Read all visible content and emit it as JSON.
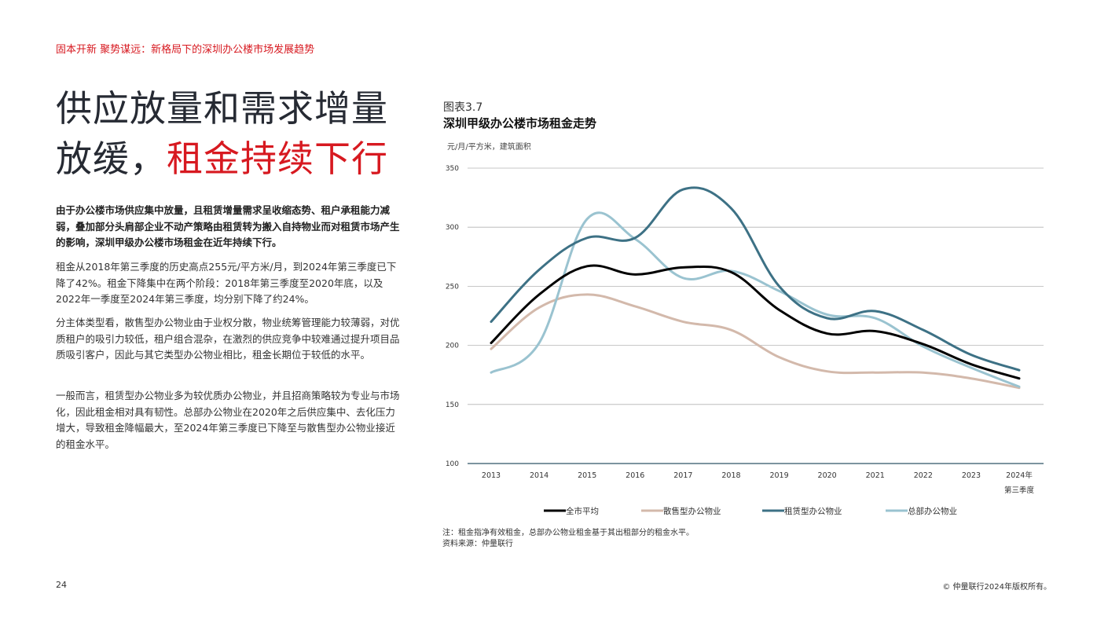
{
  "header": {
    "breadcrumb": "固本开新 聚势谋远：新格局下的深圳办公楼市场发展趋势"
  },
  "title": {
    "line1": "供应放量和需求增量",
    "line2_plain": "放缓，",
    "line2_accent": "租金持续下行"
  },
  "lead": "由于办公楼市场供应集中放量，且租赁增量需求呈收缩态势、租户承租能力减弱，叠加部分头肩部企业不动产策略由租赁转为搬入自持物业而对租赁市场产生的影响，深圳甲级办公楼市场租金在近年持续下行。",
  "paragraphs": [
    "租金从2018年第三季度的历史高点255元/平方米/月，到2024年第三季度已下降了42%。租金下降集中在两个阶段：2018年第三季度至2020年底，以及2022年一季度至2024年第三季度，均分别下降了约24%。",
    "分主体类型看，散售型办公物业由于业权分散，物业统筹管理能力较薄弱，对优质租户的吸引力较低，租户组合混杂，在激烈的供应竞争中较难通过提升项目品质吸引客户，因此与其它类型办公物业相比，租金长期位于较低的水平。",
    "一般而言，租赁型办公物业多为较优质办公物业，并且招商策略较为专业与市场化，因此租金相对具有韧性。总部办公物业在2020年之后供应集中、去化压力增大，导致租金降幅最大，至2024年第三季度已下降至与散售型办公物业接近的租金水平。"
  ],
  "figure": {
    "label": "图表3.7",
    "title": "深圳甲级办公楼市场租金走势",
    "unit": "元/月/平方米，建筑面积",
    "note": "注：租金指净有效租金，总部办公物业租金基于其出租部分的租金水平。",
    "source": "资料来源：仲量联行"
  },
  "chart_data": {
    "type": "line",
    "x": [
      "2013",
      "2014",
      "2015",
      "2016",
      "2017",
      "2018",
      "2019",
      "2020",
      "2021",
      "2022",
      "2023",
      "2024年 第三季度"
    ],
    "ylim": [
      100,
      350
    ],
    "yticks": [
      100,
      150,
      200,
      250,
      300,
      350
    ],
    "ylabel": "元/月/平方米，建筑面积",
    "grid": true,
    "legend": "bottom",
    "series": [
      {
        "name": "全市平均",
        "color": "#000000",
        "values": [
          202,
          243,
          267,
          260,
          266,
          262,
          230,
          210,
          212,
          201,
          184,
          172
        ]
      },
      {
        "name": "散售型办公物业",
        "color": "#d3b9ab",
        "values": [
          197,
          232,
          243,
          233,
          220,
          213,
          190,
          178,
          177,
          177,
          172,
          164
        ]
      },
      {
        "name": "租赁型办公物业",
        "color": "#3d7185",
        "values": [
          220,
          264,
          291,
          291,
          332,
          316,
          250,
          223,
          229,
          213,
          192,
          179
        ]
      },
      {
        "name": "总部办公物业",
        "color": "#9ac3d0",
        "values": [
          177,
          202,
          307,
          290,
          257,
          263,
          246,
          226,
          223,
          199,
          181,
          165
        ]
      }
    ]
  },
  "footer": {
    "page": "24",
    "copyright": "© 仲量联行2024年版权所有。"
  }
}
